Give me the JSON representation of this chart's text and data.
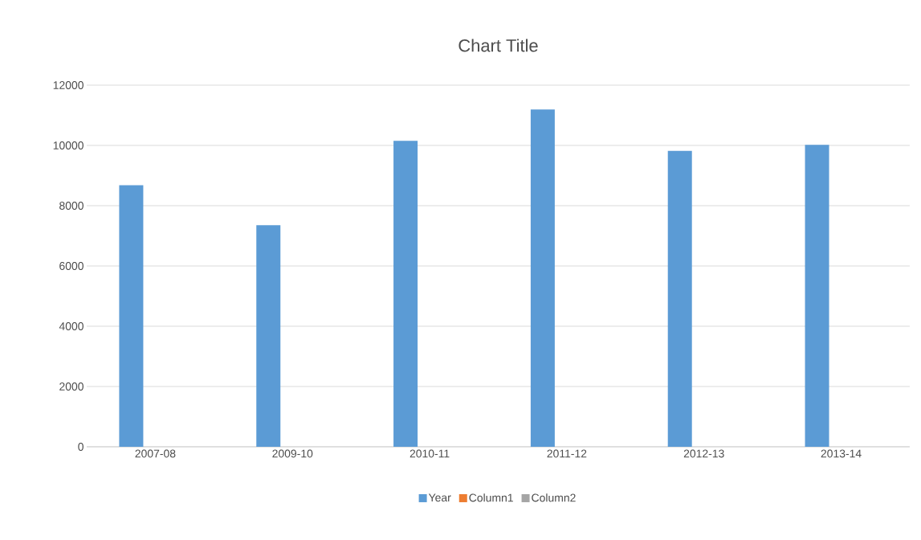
{
  "chart_data": {
    "type": "bar",
    "title": "Chart Title",
    "categories": [
      "2007-08",
      "2009-10",
      "2010-11",
      "2011-12",
      "2012-13",
      "2013-14"
    ],
    "series": [
      {
        "name": "Year",
        "color": "#5b9bd5",
        "values": [
          8680,
          7350,
          10150,
          11190,
          9820,
          10020
        ]
      },
      {
        "name": "Column1",
        "color": "#ed7d31",
        "values": [
          null,
          null,
          null,
          null,
          null,
          null
        ]
      },
      {
        "name": "Column2",
        "color": "#a5a5a5",
        "values": [
          null,
          null,
          null,
          null,
          null,
          null
        ]
      }
    ],
    "ylim": [
      0,
      12000
    ],
    "yticks": [
      0,
      2000,
      4000,
      6000,
      8000,
      10000,
      12000
    ],
    "grid": "y",
    "legend": "bottom"
  }
}
